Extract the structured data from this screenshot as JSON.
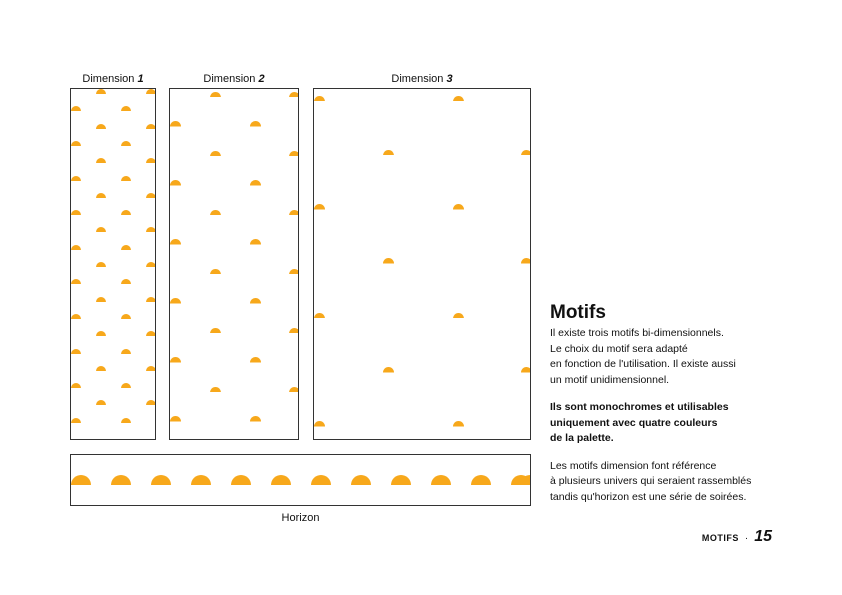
{
  "colors": {
    "accent": "#F7A81B",
    "border": "#333333"
  },
  "patterns": {
    "dimension1": {
      "name": "Dimension",
      "number": "1"
    },
    "dimension2": {
      "name": "Dimension",
      "number": "2"
    },
    "dimension3": {
      "name": "Dimension",
      "number": "3"
    },
    "horizon": {
      "name": "Horizon"
    }
  },
  "text": {
    "title": "Motifs",
    "para1": [
      "Il existe trois motifs bi-dimensionnels.",
      "Le choix du motif sera adapté",
      "en fonction de l'utilisation. Il existe aussi",
      "un motif unidimensionnel."
    ],
    "para2": [
      "Ils sont monochromes et utilisables",
      "uniquement avec quatre couleurs",
      "de la palette."
    ],
    "para3": [
      "Les motifs dimension font référence",
      "à plusieurs univers qui seraient rassemblés",
      "tandis qu'horizon est une série de soirées."
    ]
  },
  "footer": {
    "section": "MOTIFS",
    "separator": "·",
    "page": "15"
  }
}
